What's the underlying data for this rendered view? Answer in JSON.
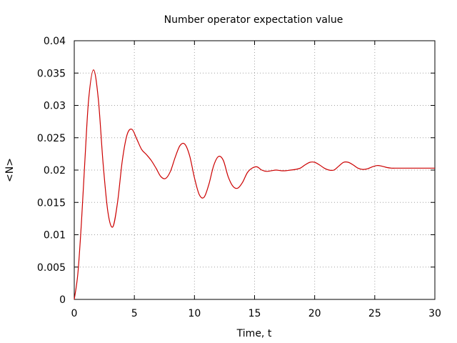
{
  "chart_data": {
    "type": "line",
    "title": "Number operator expectation value",
    "xlabel": "Time, t",
    "ylabel": "<N>",
    "xlim": [
      0,
      30
    ],
    "ylim": [
      0,
      0.04
    ],
    "xticks": [
      0,
      5,
      10,
      15,
      20,
      25,
      30
    ],
    "xtick_labels": [
      "0",
      "5",
      "10",
      "15",
      "20",
      "25",
      "30"
    ],
    "yticks": [
      0,
      0.005,
      0.01,
      0.015,
      0.02,
      0.025,
      0.03,
      0.035,
      0.04
    ],
    "ytick_labels": [
      "0",
      "0.005",
      "0.01",
      "0.015",
      "0.02",
      "0.025",
      "0.03",
      "0.035",
      "0.04"
    ],
    "grid": true,
    "line_color": "#cc0000",
    "series": [
      {
        "x": [
          0,
          0.3,
          0.6,
          0.9,
          1.2,
          1.6,
          2.0,
          2.4,
          2.8,
          3.2,
          3.6,
          4.0,
          4.4,
          4.8,
          5.2,
          5.6,
          6.0,
          6.4,
          6.8,
          7.2,
          7.6,
          8.0,
          8.4,
          8.8,
          9.2,
          9.6,
          10.0,
          10.4,
          10.8,
          11.2,
          11.6,
          12.0,
          12.4,
          12.8,
          13.2,
          13.6,
          14.0,
          14.4,
          14.8,
          15.2,
          15.6,
          16.0,
          16.4,
          16.8,
          17.2,
          17.6,
          18.0,
          18.4,
          18.8,
          19.2,
          19.6,
          20.0,
          20.4,
          20.8,
          21.2,
          21.6,
          22.0,
          22.4,
          22.8,
          23.2,
          23.6,
          24.0,
          24.4,
          24.8,
          25.2,
          25.6,
          26.0,
          26.4,
          26.8,
          27.2,
          27.6,
          28.0,
          28.4,
          28.8,
          29.2,
          29.6,
          30.0
        ],
        "y": [
          0.0,
          0.004,
          0.012,
          0.022,
          0.031,
          0.0355,
          0.031,
          0.021,
          0.0135,
          0.0112,
          0.015,
          0.0215,
          0.0255,
          0.0263,
          0.0248,
          0.0232,
          0.0224,
          0.0215,
          0.0203,
          0.019,
          0.0187,
          0.0198,
          0.022,
          0.0238,
          0.024,
          0.0222,
          0.0188,
          0.0162,
          0.0158,
          0.0178,
          0.0207,
          0.0221,
          0.0215,
          0.019,
          0.0175,
          0.0172,
          0.0181,
          0.0196,
          0.0203,
          0.0205,
          0.02,
          0.0198,
          0.0199,
          0.02,
          0.0199,
          0.0199,
          0.02,
          0.0201,
          0.0203,
          0.0208,
          0.0212,
          0.0212,
          0.0208,
          0.0203,
          0.02,
          0.02,
          0.0206,
          0.0212,
          0.0212,
          0.0208,
          0.0203,
          0.0201,
          0.0202,
          0.0205,
          0.0207,
          0.0206,
          0.0204,
          0.0203,
          0.0203,
          0.0203,
          0.0203,
          0.0203,
          0.0203,
          0.0203,
          0.0203,
          0.0203,
          0.0203
        ]
      }
    ]
  }
}
